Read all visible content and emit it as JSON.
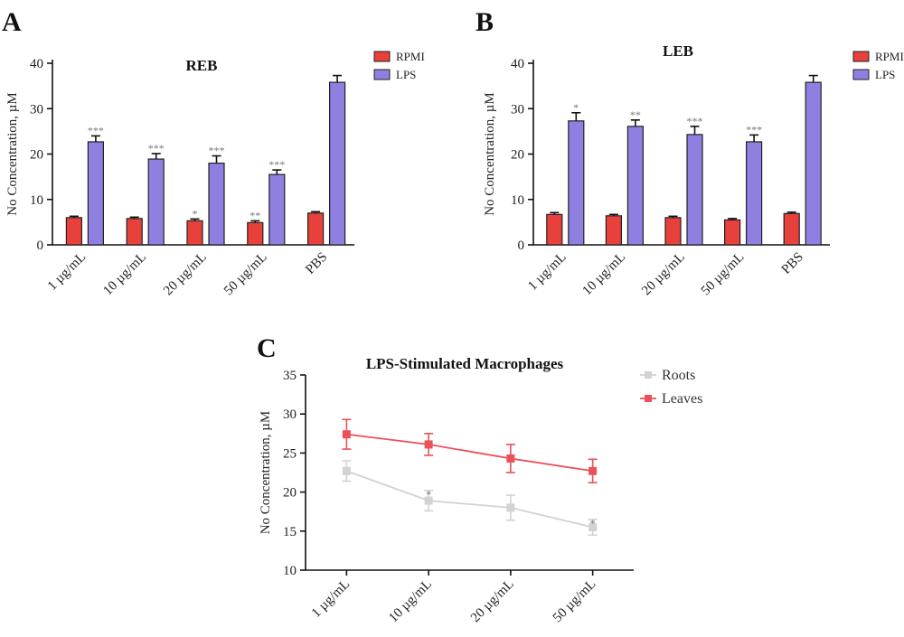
{
  "panels": {
    "a": "A",
    "b": "B",
    "c": "C"
  },
  "colors": {
    "rpmi": "#e8403a",
    "lps": "#8f7fe0",
    "roots": "#d2d2d2",
    "leaves": "#e9525a",
    "bar_edge": "#222222"
  },
  "chart_data": [
    {
      "type": "bar",
      "title": "REB",
      "ylabel": "No Concentration, µM",
      "xlabel": "",
      "ylim": [
        0,
        40
      ],
      "yticks": [
        0,
        10,
        20,
        30,
        40
      ],
      "grid": false,
      "legend": "top-right",
      "categories": [
        "1 µg/mL",
        "10 µg/mL",
        "20 µg/mL",
        "50 µg/mL",
        "PBS"
      ],
      "series": [
        {
          "name": "RPMI",
          "values": [
            6.0,
            5.8,
            5.3,
            4.9,
            7.0
          ],
          "errors": [
            0.3,
            0.3,
            0.4,
            0.4,
            0.3
          ],
          "labels": [
            "",
            "",
            "*",
            "**",
            ""
          ]
        },
        {
          "name": "LPS",
          "values": [
            22.7,
            18.9,
            18.0,
            15.5,
            35.8
          ],
          "errors": [
            1.3,
            1.2,
            1.6,
            1.0,
            1.5
          ],
          "labels": [
            "***",
            "***",
            "***",
            "***",
            ""
          ]
        }
      ]
    },
    {
      "type": "bar",
      "title": "LEB",
      "ylabel": "No Concentration, µM",
      "xlabel": "",
      "ylim": [
        0,
        40
      ],
      "yticks": [
        0,
        10,
        20,
        30,
        40
      ],
      "grid": false,
      "legend": "top-right",
      "categories": [
        "1 µg/mL",
        "10 µg/mL",
        "20 µg/mL",
        "50 µg/mL",
        "PBS"
      ],
      "series": [
        {
          "name": "RPMI",
          "values": [
            6.7,
            6.4,
            6.0,
            5.5,
            6.9
          ],
          "errors": [
            0.4,
            0.3,
            0.3,
            0.3,
            0.3
          ],
          "labels": [
            "",
            "",
            "",
            "",
            ""
          ]
        },
        {
          "name": "LPS",
          "values": [
            27.3,
            26.1,
            24.3,
            22.7,
            35.8
          ],
          "errors": [
            1.8,
            1.4,
            1.8,
            1.5,
            1.5
          ],
          "labels": [
            "*",
            "**",
            "***",
            "***",
            ""
          ]
        }
      ]
    },
    {
      "type": "line",
      "title": "LPS-Stimulated Macrophages",
      "ylabel": "No Concentration, µM",
      "xlabel": "",
      "ylim": [
        10,
        35
      ],
      "yticks": [
        10,
        15,
        20,
        25,
        30,
        35
      ],
      "grid": false,
      "legend": "top-right",
      "categories": [
        "1 µg/mL",
        "10 µg/mL",
        "20 µg/mL",
        "50 µg/mL"
      ],
      "series": [
        {
          "name": "Roots",
          "values": [
            22.7,
            18.9,
            18.0,
            15.5
          ],
          "errors": [
            1.3,
            1.3,
            1.6,
            1.0
          ],
          "labels": [
            "",
            "*",
            "",
            "*"
          ]
        },
        {
          "name": "Leaves",
          "values": [
            27.4,
            26.1,
            24.3,
            22.7
          ],
          "errors": [
            1.9,
            1.4,
            1.8,
            1.5
          ],
          "labels": [
            "",
            "",
            "",
            ""
          ]
        }
      ]
    }
  ]
}
